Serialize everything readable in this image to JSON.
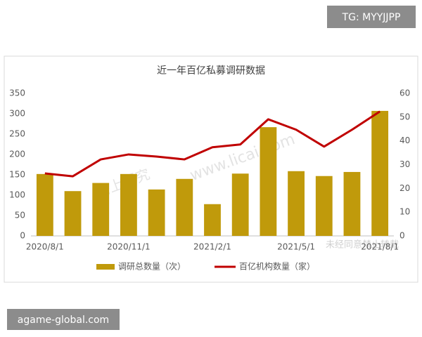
{
  "tag": "TG: MYYJJPP",
  "footer": "agame-global.com",
  "chart_data": {
    "type": "bar-line",
    "title": "近一年百亿私募调研数据",
    "categories": [
      "2020/8/1",
      null,
      null,
      "2020/11/1",
      null,
      null,
      "2021/2/1",
      null,
      null,
      "2021/5/1",
      null,
      null,
      "2021/8/1"
    ],
    "series": [
      {
        "name": "调研总数量（次）",
        "type": "bar",
        "color": "#c09a0b",
        "values": [
          152,
          110,
          130,
          152,
          114,
          140,
          78,
          153,
          267,
          159,
          147,
          157,
          307
        ]
      },
      {
        "name": "百亿机构数量（家）",
        "type": "line",
        "axis": "y2",
        "color": "#c00000",
        "values": [
          26.3,
          25.1,
          32.2,
          34.3,
          33.4,
          32.2,
          37.3,
          38.5,
          49.1,
          44.7,
          37.6,
          44.7,
          52.4
        ]
      }
    ],
    "ylim": [
      0,
      350
    ],
    "yticks": [
      0,
      50,
      100,
      150,
      200,
      250,
      300,
      350
    ],
    "y2lim": [
      0,
      60
    ],
    "y2ticks": [
      0,
      10,
      20,
      30,
      40,
      50,
      60
    ],
    "grid": false,
    "legend": "bottom",
    "annotations": [
      "格上研究",
      "www.licai.com",
      "未经同意禁止转载"
    ]
  }
}
